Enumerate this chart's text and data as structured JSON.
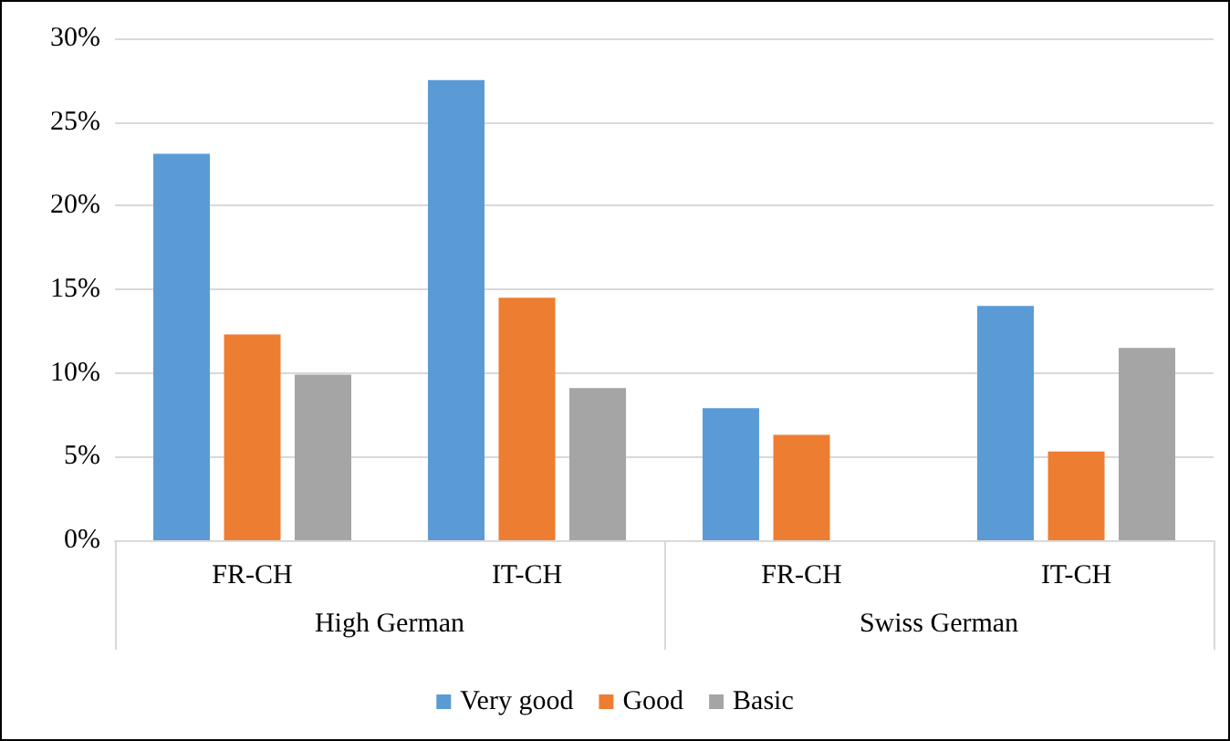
{
  "chart_data": {
    "type": "bar",
    "categories": [
      "FR-CH",
      "IT-CH",
      "FR-CH",
      "IT-CH"
    ],
    "annotations": [
      "High German",
      "Swiss German"
    ],
    "series": [
      {
        "name": "Very good",
        "color": "#5b9bd5",
        "values": [
          23.1,
          27.5,
          7.9,
          14.0
        ]
      },
      {
        "name": "Good",
        "color": "#ed7d31",
        "values": [
          12.3,
          14.5,
          6.3,
          5.3
        ]
      },
      {
        "name": "Basic",
        "color": "#a5a5a5",
        "values": [
          9.9,
          9.1,
          null,
          11.5
        ]
      }
    ],
    "ylim": [
      0,
      30
    ],
    "yticks": [
      {
        "value": 0,
        "label": "0%"
      },
      {
        "value": 5,
        "label": "5%"
      },
      {
        "value": 10,
        "label": "10%"
      },
      {
        "value": 15,
        "label": "15%"
      },
      {
        "value": 20,
        "label": "20%"
      },
      {
        "value": 25,
        "label": "25%"
      },
      {
        "value": 30,
        "label": "30%"
      }
    ],
    "grid": "y",
    "legend": "bottom"
  }
}
